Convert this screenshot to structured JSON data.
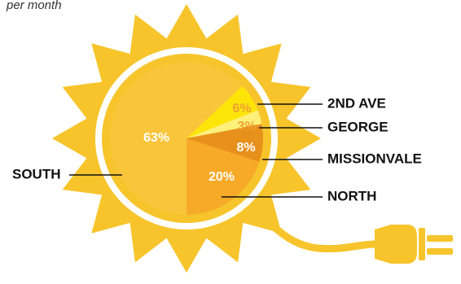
{
  "chart_data": {
    "type": "pie",
    "subtitle": "per month",
    "categories": [
      "SOUTH",
      "2ND AVE",
      "GEORGE",
      "MISSIONVALE",
      "NORTH"
    ],
    "values": [
      63,
      6,
      3,
      8,
      20
    ],
    "value_labels": [
      "63%",
      "6%",
      "3%",
      "8%",
      "20%"
    ],
    "colors": [
      "#f9c53a",
      "#fde50a",
      "#fff07a",
      "#e8901c",
      "#f7a928"
    ]
  }
}
